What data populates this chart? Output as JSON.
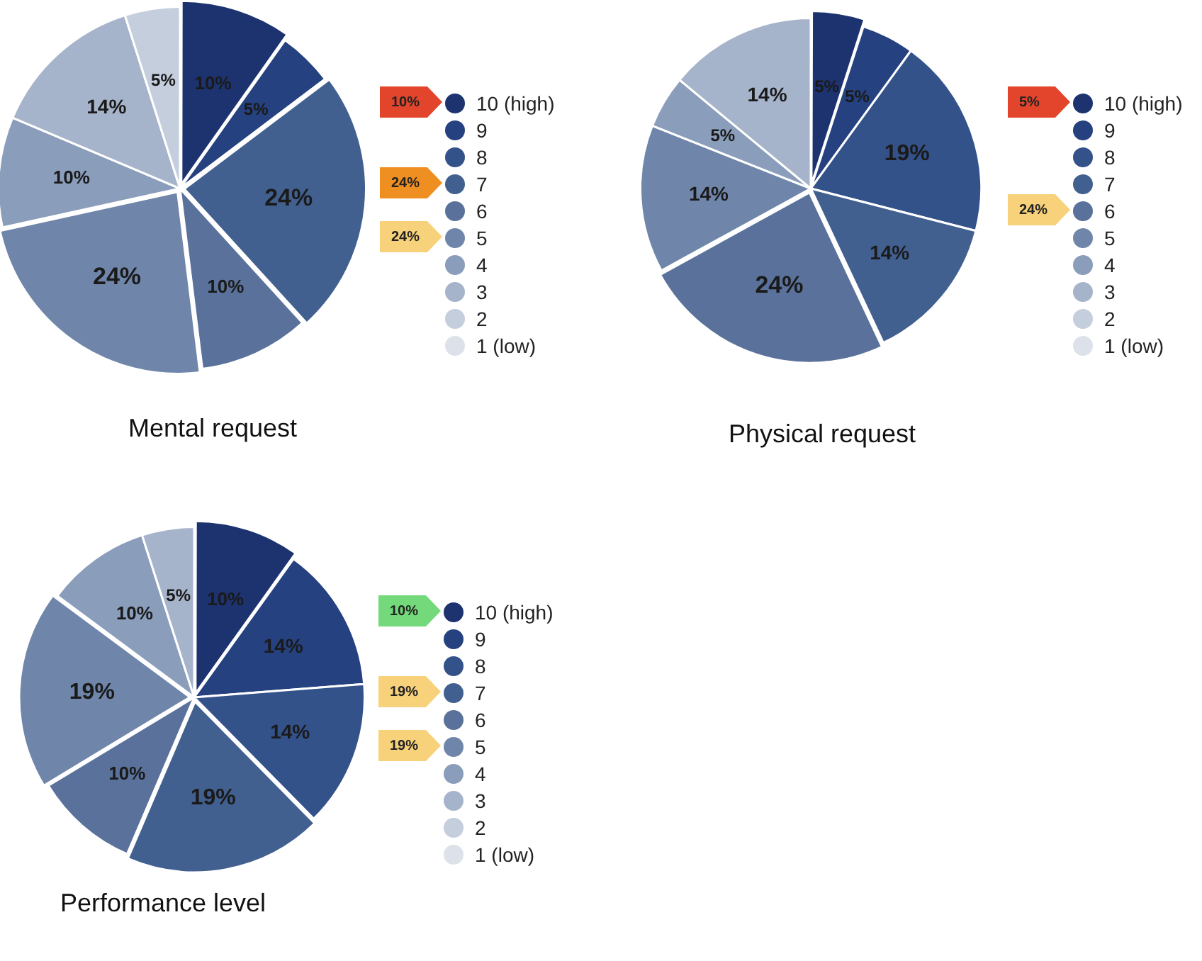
{
  "chart_data": [
    {
      "type": "pie",
      "title": "Mental request",
      "categories": [
        "10 (high)",
        "9",
        "8",
        "7",
        "6",
        "5",
        "4",
        "3",
        "2",
        "1 (low)"
      ],
      "values": [
        10,
        5,
        0,
        24,
        10,
        24,
        10,
        14,
        5,
        0
      ],
      "value_labels": [
        "10%",
        "5%",
        null,
        "24%",
        "10%",
        "24%",
        "10%",
        "14%",
        "5%",
        null
      ],
      "colors": [
        "#1c3370",
        "#25417f",
        "#34528a",
        "#42608f",
        "#5a729b",
        "#6f86aa",
        "#8a9dbb",
        "#a6b4cb",
        "#c4cedd",
        "#dde2ea"
      ],
      "legend": "right",
      "annotations": [
        {
          "text": "10%",
          "x": "10 (high)"
        },
        {
          "text": "24%",
          "x": "7"
        },
        {
          "text": "24%",
          "x": "5"
        }
      ]
    },
    {
      "type": "pie",
      "title": "Physical request",
      "categories": [
        "10 (high)",
        "9",
        "8",
        "7",
        "6",
        "5",
        "4",
        "3",
        "2",
        "1 (low)"
      ],
      "values": [
        5,
        5,
        19,
        14,
        24,
        14,
        5,
        14,
        0,
        0
      ],
      "value_labels": [
        "5%",
        "5%",
        "19%",
        "14%",
        "24%",
        "14%",
        "5%",
        "14%",
        null,
        null
      ],
      "colors": [
        "#1c3370",
        "#25417f",
        "#34528a",
        "#42608f",
        "#5a729b",
        "#6f86aa",
        "#8a9dbb",
        "#a6b4cb",
        "#c4cedd",
        "#dde2ea"
      ],
      "legend": "right",
      "annotations": [
        {
          "text": "5%",
          "x": "10 (high)"
        },
        {
          "text": "24%",
          "x": "6"
        }
      ]
    },
    {
      "type": "pie",
      "title": "Performance level",
      "categories": [
        "10 (high)",
        "9",
        "8",
        "7",
        "6",
        "5",
        "4",
        "3",
        "2",
        "1 (low)"
      ],
      "values": [
        10,
        14,
        14,
        19,
        10,
        19,
        10,
        5,
        0,
        0
      ],
      "value_labels": [
        "10%",
        "14%",
        "14%",
        "19%",
        "10%",
        "19%",
        "10%",
        "5%",
        null,
        null
      ],
      "colors": [
        "#1c3370",
        "#25417f",
        "#34528a",
        "#42608f",
        "#5a729b",
        "#6f86aa",
        "#8a9dbb",
        "#a6b4cb",
        "#c4cedd",
        "#dde2ea"
      ],
      "legend": "right",
      "annotations": [
        {
          "text": "10%",
          "x": "10 (high)"
        },
        {
          "text": "19%",
          "x": "7"
        },
        {
          "text": "19%",
          "x": "5"
        }
      ]
    }
  ]
}
